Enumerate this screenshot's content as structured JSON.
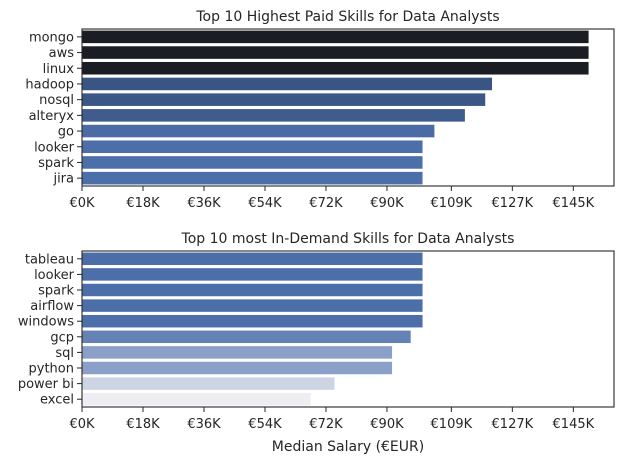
{
  "xlabel": "Median Salary (€EUR)",
  "tick_values": [
    0,
    18000,
    36000,
    54000,
    72000,
    90000,
    109000,
    127000,
    145000
  ],
  "tick_labels": [
    "€0K",
    "€18K",
    "€36K",
    "€54K",
    "€72K",
    "€90K",
    "€109K",
    "€127K",
    "€145K"
  ],
  "chart_data": [
    {
      "type": "bar",
      "orientation": "horizontal",
      "title": "Top 10 Highest Paid Skills for Data Analysts",
      "xlabel": "",
      "xlim": [
        0,
        157000
      ],
      "categories": [
        "mongo",
        "aws",
        "linux",
        "hadoop",
        "nosql",
        "alteryx",
        "go",
        "looker",
        "spark",
        "jira"
      ],
      "values": [
        149500,
        149500,
        149500,
        121000,
        119000,
        113000,
        104000,
        100500,
        100500,
        100500
      ],
      "colors": [
        "#1b1d24",
        "#1b1d24",
        "#1b1d24",
        "#3a5583",
        "#3b5786",
        "#3f5c8d",
        "#4a6ba3",
        "#4c6fa9",
        "#4c6fa9",
        "#4c6fa9"
      ]
    },
    {
      "type": "bar",
      "orientation": "horizontal",
      "title": "Top 10 most In-Demand Skills for Data Analysts",
      "xlabel": "Median Salary (€EUR)",
      "xlim": [
        0,
        157000
      ],
      "categories": [
        "tableau",
        "looker",
        "spark",
        "airflow",
        "windows",
        "gcp",
        "sql",
        "python",
        "power bi",
        "excel"
      ],
      "values": [
        100500,
        100500,
        100500,
        100500,
        100500,
        97000,
        91500,
        91500,
        74500,
        67500
      ],
      "colors": [
        "#4c6ea8",
        "#4c6fa9",
        "#4c6fa9",
        "#4c6fa9",
        "#4c6fa9",
        "#6582b5",
        "#8aa0c8",
        "#8aa0c8",
        "#cdd5e4",
        "#ededf2"
      ]
    }
  ]
}
